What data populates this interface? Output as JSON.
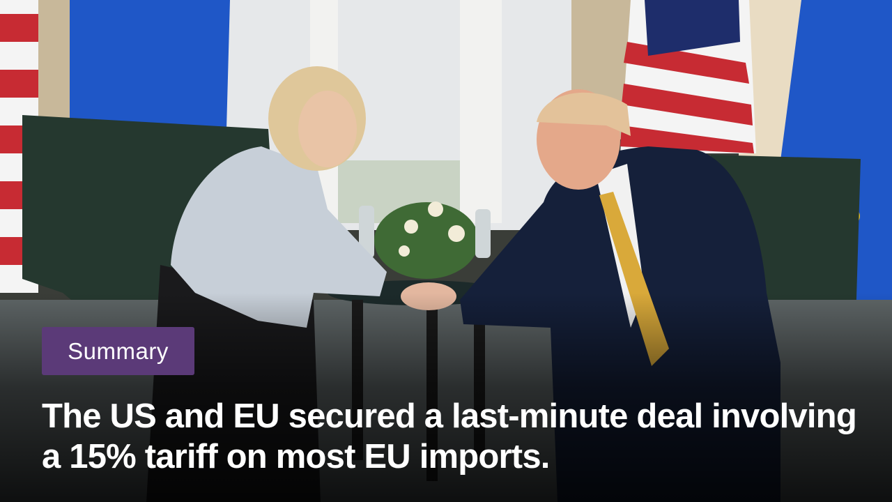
{
  "badge": {
    "label": "Summary",
    "color": "#5b3a78"
  },
  "headline": {
    "text": "The US and EU secured a last-minute deal involving a 15% tariff on most EU imports."
  },
  "photo": {
    "subject": "photo"
  }
}
